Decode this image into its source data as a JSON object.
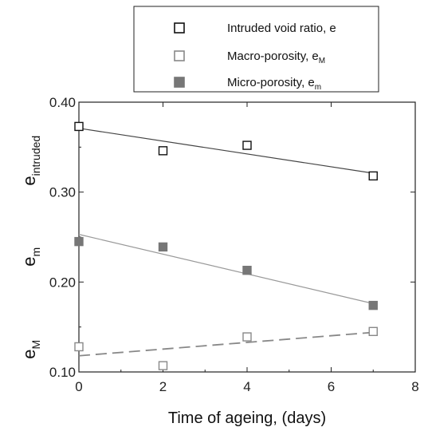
{
  "chart_data": {
    "type": "scatter",
    "title": "",
    "xlabel": "Time of ageing, (days)",
    "ylabels": [
      {
        "main": "e",
        "sub": "intruded"
      },
      {
        "main": "e",
        "sub": "m"
      },
      {
        "main": "e",
        "sub": "M"
      }
    ],
    "xlim": [
      0,
      8
    ],
    "ylim": [
      0.1,
      0.4
    ],
    "xticks": [
      0,
      2,
      4,
      6,
      8
    ],
    "xtick_labels": [
      "0",
      "2",
      "4",
      "6",
      "8"
    ],
    "yticks": [
      0.1,
      0.2,
      0.3,
      0.4
    ],
    "ytick_labels": [
      "0.10",
      "0.20",
      "0.30",
      "0.40"
    ],
    "legend_position": "top-right, above plot",
    "grid": false,
    "series": [
      {
        "name": "Intruded void ratio, e",
        "name_sub": "",
        "marker": "open-square",
        "color": "#111111",
        "x": [
          0,
          2,
          4,
          7
        ],
        "y": [
          0.373,
          0.346,
          0.352,
          0.318
        ],
        "trend": {
          "x": [
            0,
            7
          ],
          "y": [
            0.371,
            0.321
          ],
          "style": "solid",
          "color": "#444444"
        }
      },
      {
        "name": "Macro-porosity, e",
        "name_sub": "M",
        "marker": "open-square",
        "color": "#888888",
        "x": [
          0,
          2,
          4,
          7
        ],
        "y": [
          0.128,
          0.107,
          0.139,
          0.145
        ],
        "trend": {
          "x": [
            0,
            7
          ],
          "y": [
            0.118,
            0.144
          ],
          "style": "dashed",
          "color": "#888888"
        }
      },
      {
        "name": "Micro-porosity, e",
        "name_sub": "m",
        "marker": "filled-square",
        "color": "#777777",
        "x": [
          0,
          2,
          4,
          7
        ],
        "y": [
          0.245,
          0.239,
          0.213,
          0.174
        ],
        "trend": {
          "x": [
            0,
            7
          ],
          "y": [
            0.253,
            0.176
          ],
          "style": "solid",
          "color": "#999999"
        }
      }
    ]
  }
}
